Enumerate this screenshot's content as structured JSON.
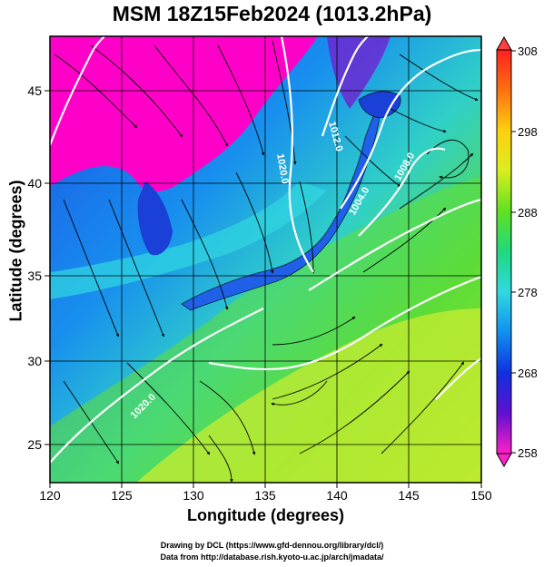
{
  "title": "MSM 18Z15Feb2024 (1013.2hPa)",
  "axes": {
    "xlabel": "Longitude (degrees)",
    "ylabel": "Latitude  (degrees)",
    "xlim": [
      120,
      150
    ],
    "ylim": [
      22.4,
      47.6
    ],
    "xticks": [
      "120",
      "125",
      "130",
      "135",
      "140",
      "145",
      "150"
    ],
    "yticks": [
      "25",
      "30",
      "35",
      "40",
      "45"
    ]
  },
  "colorbar": {
    "min": 258,
    "max": 308,
    "ticks": [
      "308",
      "298",
      "288",
      "278",
      "268",
      "258"
    ]
  },
  "pressure_contour_labels": [
    "1012.0",
    "1020.0",
    "1004.0",
    "1008.0",
    "1020.0"
  ],
  "footer": {
    "line1": "Drawing by DCL (https://www.gfd-dennou.org/library/dcl/)",
    "line2": "Data from http://database.rish.kyoto-u.ac.jp/arch/jmadata/"
  },
  "colors": {
    "cold": "#ff00c8",
    "blue": "#1030e0",
    "cyan": "#30d8e0",
    "green": "#30d060",
    "yellow": "#d8ee30",
    "warm": "#ff3020"
  }
}
